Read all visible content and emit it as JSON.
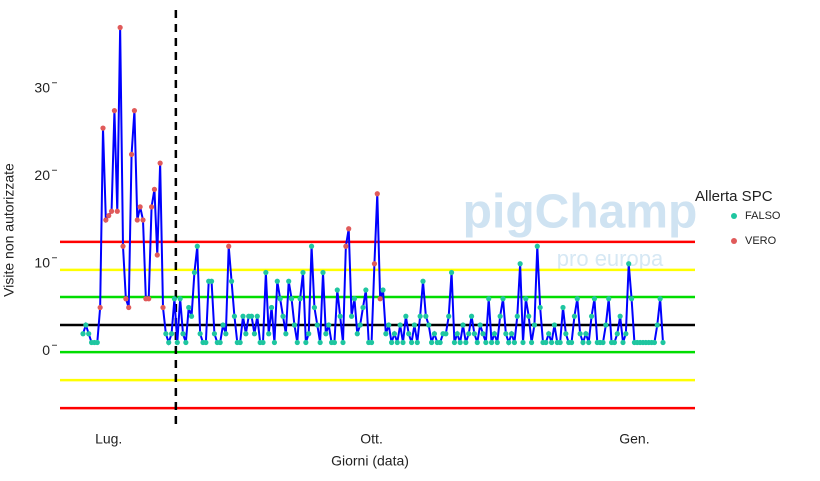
{
  "chart_data": {
    "type": "line",
    "y_label": "Visite non autorizzate",
    "x_label": "Giorni (data)",
    "watermark": [
      "pigChamp",
      "pro europa"
    ],
    "categories": [
      null,
      null,
      null,
      null,
      null,
      null,
      null,
      null,
      null,
      "Lug.",
      null,
      null,
      null,
      null,
      null,
      null,
      null,
      null,
      null,
      null,
      null,
      null,
      null,
      null,
      null,
      null,
      null,
      null,
      null,
      null,
      null,
      null,
      null,
      null,
      null,
      null,
      null,
      null,
      null,
      null,
      null,
      null,
      null,
      null,
      null,
      null,
      null,
      null,
      null,
      null,
      null,
      null,
      null,
      null,
      null,
      null,
      null,
      null,
      null,
      null,
      null,
      null,
      null,
      null,
      null,
      null,
      null,
      null,
      null,
      null,
      null,
      null,
      null,
      null,
      null,
      null,
      null,
      null,
      null,
      null,
      null,
      null,
      null,
      null,
      null,
      null,
      null,
      null,
      null,
      null,
      null,
      null,
      null,
      null,
      null,
      null,
      null,
      null,
      null,
      null,
      null,
      "Ott.",
      null,
      null,
      null,
      null,
      null,
      null,
      null,
      null,
      null,
      null,
      null,
      null,
      null,
      null,
      null,
      null,
      null,
      null,
      null,
      null,
      null,
      null,
      null,
      null,
      null,
      null,
      null,
      null,
      null,
      null,
      null,
      null,
      null,
      null,
      null,
      null,
      null,
      null,
      null,
      null,
      null,
      null,
      null,
      null,
      null,
      null,
      null,
      null,
      null,
      null,
      null,
      null,
      null,
      null,
      null,
      null,
      null,
      null,
      null,
      null,
      null,
      null,
      null,
      null,
      null,
      null,
      null,
      null,
      null,
      null,
      null,
      null,
      null,
      null,
      null,
      null,
      null,
      null,
      null,
      null,
      null,
      null,
      null,
      null,
      null,
      null,
      null,
      null,
      null,
      null,
      null,
      "Gen.",
      null,
      null,
      null,
      null,
      null,
      null,
      null,
      null,
      null,
      null
    ],
    "values": [
      2,
      3,
      2,
      1,
      1,
      1,
      5,
      25.5,
      15,
      15.5,
      16,
      27.5,
      16,
      37,
      12,
      6,
      5,
      22.5,
      27.5,
      15,
      16.5,
      15,
      6,
      6,
      16.5,
      18.5,
      11,
      21.5,
      5,
      2,
      1,
      2,
      6,
      1,
      6,
      2,
      1,
      5,
      4,
      9,
      12,
      2,
      1,
      1,
      8,
      8,
      2,
      1,
      1,
      3,
      2,
      12,
      8,
      4,
      1,
      1,
      4,
      2,
      4,
      4,
      2,
      4,
      1,
      1,
      9,
      2,
      5,
      1,
      8,
      6,
      4,
      2,
      8,
      6,
      3,
      1,
      6,
      9,
      1,
      2,
      12,
      5,
      3,
      1,
      9,
      2,
      3,
      1,
      1,
      7,
      4,
      1,
      12,
      14,
      4,
      6,
      2,
      3,
      5,
      7,
      1,
      1,
      10,
      18,
      6,
      7,
      2,
      3,
      1,
      2,
      1,
      3,
      1,
      4,
      2,
      1,
      3,
      1,
      4,
      8,
      4,
      3,
      1,
      2,
      1,
      1,
      2,
      2,
      4,
      9,
      1,
      2,
      1,
      3,
      1,
      2,
      4,
      2,
      1,
      3,
      2,
      1,
      6,
      1,
      2,
      1,
      4,
      6,
      2,
      1,
      2,
      1,
      4,
      10,
      1,
      6,
      4,
      1,
      3,
      12,
      5,
      1,
      1,
      2,
      1,
      3,
      1,
      1,
      5,
      2,
      1,
      1,
      4,
      6,
      2,
      1,
      2,
      1,
      4,
      6,
      1,
      1,
      1,
      3,
      6,
      1,
      1,
      2,
      4,
      1,
      2,
      10,
      6,
      1,
      1,
      1,
      1,
      1,
      1,
      1,
      1,
      3,
      6,
      1
    ],
    "alert": [
      0,
      0,
      0,
      0,
      0,
      0,
      1,
      1,
      1,
      1,
      1,
      1,
      1,
      1,
      1,
      1,
      1,
      1,
      1,
      1,
      1,
      1,
      1,
      1,
      1,
      1,
      1,
      1,
      1,
      0,
      0,
      0,
      0,
      0,
      0,
      0,
      0,
      0,
      0,
      0,
      0,
      0,
      0,
      0,
      0,
      0,
      0,
      0,
      0,
      0,
      0,
      1,
      0,
      0,
      0,
      0,
      0,
      0,
      0,
      0,
      0,
      0,
      0,
      0,
      0,
      0,
      0,
      0,
      0,
      0,
      0,
      0,
      0,
      0,
      0,
      0,
      0,
      0,
      0,
      0,
      0,
      0,
      0,
      0,
      0,
      0,
      0,
      0,
      0,
      0,
      0,
      0,
      1,
      1,
      0,
      0,
      0,
      0,
      0,
      0,
      0,
      0,
      1,
      1,
      1,
      0,
      0,
      0,
      0,
      0,
      0,
      0,
      0,
      0,
      0,
      0,
      0,
      0,
      0,
      0,
      0,
      0,
      0,
      0,
      0,
      0,
      0,
      0,
      0,
      0,
      0,
      0,
      0,
      0,
      0,
      0,
      0,
      0,
      0,
      0,
      0,
      0,
      0,
      0,
      0,
      0,
      0,
      0,
      0,
      0,
      0,
      0,
      0,
      0,
      0,
      0,
      0,
      0,
      0,
      0,
      0,
      0,
      0,
      0,
      0,
      0,
      0,
      0,
      0,
      0,
      0,
      0,
      0,
      0,
      0,
      0,
      0,
      0,
      0,
      0,
      0,
      0,
      0,
      0,
      0,
      0,
      0,
      0,
      0,
      0,
      0,
      0,
      0,
      0,
      0,
      0,
      0,
      0,
      0,
      0,
      0,
      0,
      0,
      0
    ],
    "line_color": "#0000ff",
    "legend": {
      "title": "Allerta SPC",
      "items": [
        {
          "name": "FALSO",
          "color": "#1fc6a0"
        },
        {
          "name": "VERO",
          "color": "#e05a5a"
        }
      ]
    },
    "hlines": [
      {
        "value": 12.5,
        "color": "#ff0000"
      },
      {
        "value": 9.3,
        "color": "#ffff00"
      },
      {
        "value": 6.2,
        "color": "#00dd00"
      },
      {
        "value": 3,
        "color": "#000000"
      },
      {
        "value": -0.1,
        "color": "#00dd00"
      },
      {
        "value": -3.3,
        "color": "#ffff00"
      },
      {
        "value": -6.5,
        "color": "#ff0000"
      }
    ],
    "vline": 32.5,
    "ylim": [
      -9,
      39
    ],
    "yticks": [
      0,
      10,
      20,
      30
    ]
  }
}
